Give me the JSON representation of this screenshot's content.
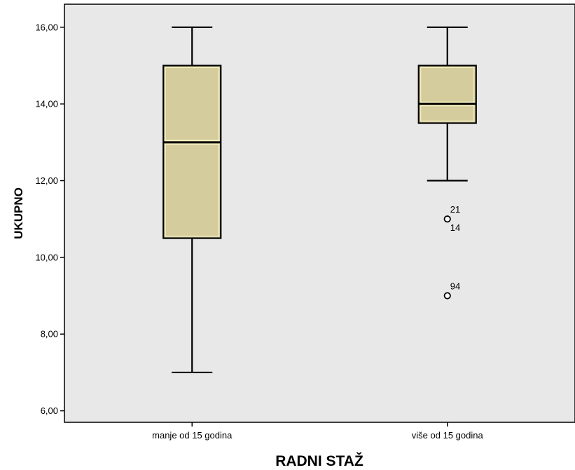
{
  "chart_data": {
    "type": "boxplot",
    "xlabel": "RADNI STAŽ",
    "ylabel": "UKUPNO",
    "ylim": [
      5.7,
      16.6
    ],
    "yticks": [
      "6,00",
      "8,00",
      "10,00",
      "12,00",
      "14,00",
      "16,00"
    ],
    "ytick_values": [
      6,
      8,
      10,
      12,
      14,
      16
    ],
    "categories": [
      "manje od 15 godina",
      "više od 15 godina"
    ],
    "boxes": [
      {
        "category": "manje od 15 godina",
        "min": 7,
        "q1": 10.5,
        "median": 13,
        "q3": 15,
        "max": 16,
        "outliers": []
      },
      {
        "category": "više od 15 godina",
        "min": 12,
        "q1": 13.5,
        "median": 14,
        "q3": 15,
        "max": 16,
        "outliers": [
          {
            "value": 11,
            "label": "21"
          },
          {
            "value": 11,
            "label": "14"
          },
          {
            "value": 9,
            "label": "94"
          }
        ]
      }
    ],
    "grid": false,
    "colors": {
      "plot_bg": "#e8e8e8",
      "box_fill": "#d5cc9e",
      "box_stroke": "#000000",
      "median_highlight": "#fdf7c4"
    }
  }
}
